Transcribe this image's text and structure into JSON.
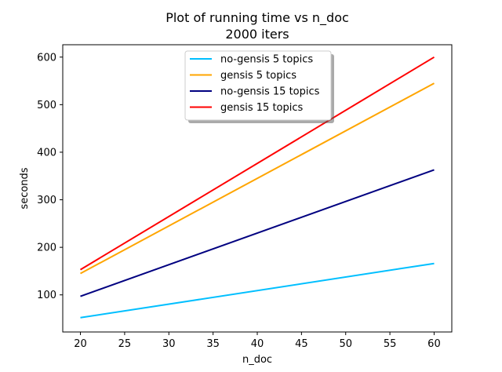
{
  "chart_data": {
    "type": "line",
    "title": "Plot of running time vs n_doc",
    "subtitle": "2000 iters",
    "xlabel": "n_doc",
    "ylabel": "seconds",
    "xlim": [
      18,
      62
    ],
    "ylim": [
      22,
      626
    ],
    "xticks": [
      20,
      25,
      30,
      35,
      40,
      45,
      50,
      55,
      60
    ],
    "yticks": [
      100,
      200,
      300,
      400,
      500,
      600
    ],
    "grid": false,
    "legend_position": "top-center",
    "series": [
      {
        "name": "no-gensis 5 topics",
        "color": "#00bfff",
        "x": [
          20,
          60
        ],
        "y": [
          52,
          166
        ]
      },
      {
        "name": "gensis 5 topics",
        "color": "#ffa500",
        "x": [
          20,
          60
        ],
        "y": [
          145,
          545
        ]
      },
      {
        "name": "no-gensis 15 topics",
        "color": "#000080",
        "x": [
          20,
          60
        ],
        "y": [
          97,
          363
        ]
      },
      {
        "name": "gensis 15 topics",
        "color": "#ff0000",
        "x": [
          20,
          60
        ],
        "y": [
          153,
          600
        ]
      }
    ]
  }
}
